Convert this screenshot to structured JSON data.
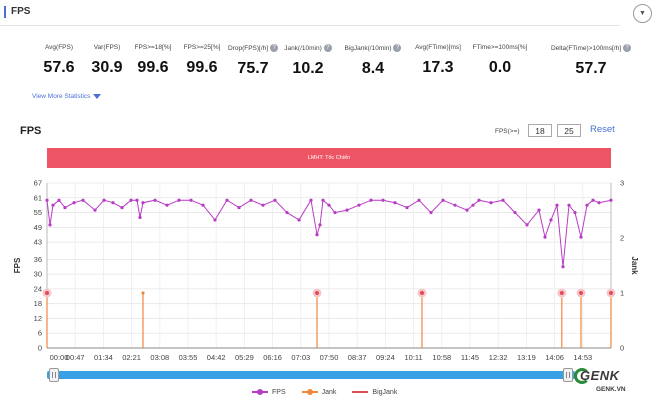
{
  "header": {
    "title": "FPS",
    "collapse_icon": "chevron-down-icon"
  },
  "stats": [
    {
      "label": "Avg(FPS)",
      "value": "57.6",
      "help": false
    },
    {
      "label": "Var(FPS)",
      "value": "30.9",
      "help": false
    },
    {
      "label": "FPS>=18[%]",
      "value": "99.6",
      "help": false
    },
    {
      "label": "FPS>=25[%]",
      "value": "99.6",
      "help": false
    },
    {
      "label": "Drop(FPS)[/h]",
      "value": "75.7",
      "help": true
    },
    {
      "label": "Jank(/10min)",
      "value": "10.2",
      "help": true
    },
    {
      "label": "BigJank(/10min)",
      "value": "8.4",
      "help": true
    },
    {
      "label": "Avg(FTime)[ms]",
      "value": "17.3",
      "help": false
    },
    {
      "label": "FTime>=100ms[%]",
      "value": "0.0",
      "help": false
    },
    {
      "label": "Delta(FTime)>100ms[/h]",
      "value": "57.7",
      "help": true
    }
  ],
  "more_stats_label": "View More Statistics",
  "chart_header": {
    "title": "FPS",
    "threshold_label": "FPS(>=)",
    "threshold_1": "18",
    "threshold_2": "25",
    "reset_label": "Reset"
  },
  "banner_label": "LMHT: Tốc Chiến",
  "chart_data": {
    "type": "line",
    "x_tick_labels": [
      "00:00",
      "00:47",
      "01:34",
      "02:21",
      "03:08",
      "03:55",
      "04:42",
      "05:29",
      "06:16",
      "07:03",
      "07:50",
      "08:37",
      "09:24",
      "10:11",
      "10:58",
      "11:45",
      "12:32",
      "13:19",
      "14:06",
      "14:53"
    ],
    "x_range_seconds": [
      0,
      940
    ],
    "ylabel": "FPS",
    "ylim": [
      0,
      67
    ],
    "y_ticks": [
      0,
      6,
      12,
      18,
      24,
      30,
      36,
      43,
      49,
      55,
      61,
      67
    ],
    "y2label": "Jank",
    "y2lim": [
      0,
      3
    ],
    "y2_ticks": [
      0,
      1,
      2,
      3
    ],
    "grid": true,
    "legend_position": "bottom",
    "series": [
      {
        "name": "FPS",
        "color": "#b93cc6",
        "x": [
          0,
          5,
          10,
          20,
          30,
          45,
          60,
          80,
          95,
          110,
          125,
          140,
          150,
          155,
          160,
          180,
          200,
          220,
          240,
          260,
          280,
          300,
          320,
          340,
          360,
          380,
          400,
          420,
          440,
          450,
          455,
          460,
          470,
          480,
          500,
          520,
          540,
          560,
          580,
          600,
          620,
          640,
          660,
          680,
          700,
          710,
          720,
          740,
          760,
          780,
          800,
          820,
          830,
          840,
          850,
          860,
          870,
          880,
          890,
          900,
          910,
          920,
          940
        ],
        "values": [
          60,
          50,
          58,
          60,
          57,
          59,
          60,
          56,
          60,
          59,
          57,
          60,
          60,
          53,
          59,
          60,
          58,
          60,
          60,
          58,
          52,
          60,
          57,
          60,
          58,
          60,
          55,
          52,
          60,
          46,
          50,
          60,
          58,
          55,
          56,
          58,
          60,
          60,
          59,
          57,
          60,
          55,
          60,
          58,
          56,
          58,
          60,
          59,
          60,
          55,
          50,
          56,
          45,
          52,
          58,
          33,
          58,
          55,
          45,
          58,
          60,
          59,
          60
        ]
      },
      {
        "name": "Jank",
        "color": "#f0883c",
        "axis": "right",
        "x": [
          0,
          160,
          450,
          625,
          858,
          890,
          940
        ],
        "values": [
          1,
          1,
          1,
          1,
          1,
          1,
          1
        ]
      },
      {
        "name": "BigJank",
        "color": "#e04c5a",
        "axis": "right",
        "x": [
          0,
          450,
          625,
          858,
          890,
          940
        ],
        "values": [
          1,
          1,
          1,
          1,
          1,
          1
        ]
      }
    ]
  },
  "legend": [
    {
      "label": "FPS",
      "color": "#b93cc6"
    },
    {
      "label": "Jank",
      "color": "#f0883c"
    },
    {
      "label": "BigJank",
      "color": "#e04c5a"
    }
  ],
  "watermark": {
    "brand": "GENK",
    "domain": "GENK.VN"
  }
}
